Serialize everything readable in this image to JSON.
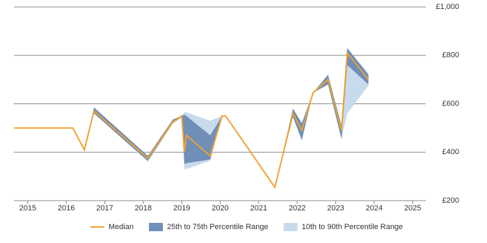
{
  "chart_data": {
    "type": "band-line",
    "x": [
      2014.64,
      2016.17,
      2016.47,
      2016.72,
      2018.12,
      2018.77,
      2019.0,
      2019.07,
      2019.12,
      2019.74,
      2020.05,
      2020.14,
      2021.42,
      2021.89,
      2022.12,
      2022.41,
      2022.8,
      2023.15,
      2023.3,
      2023.85
    ],
    "series": [
      {
        "name": "Median",
        "color": "#f0a030",
        "values": [
          500,
          500,
          410,
          570,
          375,
          525,
          550,
          400,
          470,
          385,
          550,
          550,
          255,
          560,
          490,
          645,
          700,
          490,
          810,
          700
        ]
      },
      {
        "name": "25th to 75th Percentile Range",
        "color": "#6f8fb8",
        "lower": [
          500,
          500,
          410,
          560,
          365,
          520,
          545,
          350,
          355,
          370,
          550,
          550,
          255,
          545,
          450,
          645,
          680,
          455,
          760,
          680
        ],
        "upper": [
          500,
          500,
          410,
          585,
          385,
          535,
          550,
          555,
          550,
          470,
          550,
          550,
          255,
          580,
          520,
          645,
          720,
          510,
          830,
          720
        ]
      },
      {
        "name": "10th to 90th Percentile Range",
        "color": "#c8dbec",
        "lower": [
          500,
          500,
          410,
          560,
          360,
          520,
          545,
          330,
          330,
          365,
          550,
          550,
          255,
          545,
          450,
          645,
          680,
          455,
          560,
          675
        ],
        "upper": [
          500,
          500,
          410,
          585,
          385,
          535,
          550,
          565,
          565,
          530,
          550,
          550,
          255,
          580,
          520,
          645,
          720,
          510,
          830,
          725
        ]
      }
    ],
    "xlim": [
      2014.64,
      2025.34
    ],
    "xticks": [
      2015,
      2016,
      2017,
      2018,
      2019,
      2020,
      2021,
      2022,
      2023,
      2024,
      2025
    ],
    "ylim": [
      200,
      1000
    ],
    "yticks": [
      {
        "value": 200,
        "label": "£200"
      },
      {
        "value": 400,
        "label": "£400"
      },
      {
        "value": 600,
        "label": "£600"
      },
      {
        "value": 800,
        "label": "£800"
      },
      {
        "value": 1000,
        "label": "£1,000"
      }
    ],
    "grid": true
  }
}
